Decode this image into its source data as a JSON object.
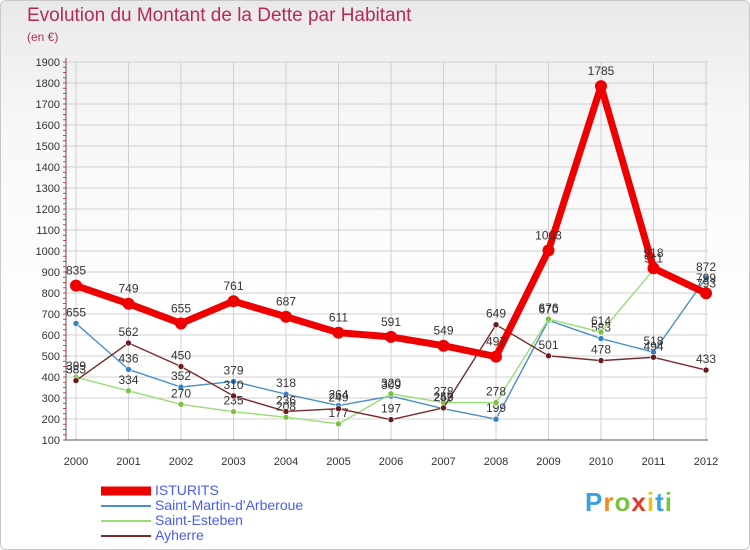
{
  "header": {
    "title": "Evolution du Montant de la Dette par Habitant",
    "unit": "(en €)"
  },
  "brand": {
    "letters": [
      "P",
      "r",
      "o",
      "x",
      "i",
      "t",
      "i"
    ],
    "colors": [
      "#3aa0e0",
      "#f28b1a",
      "#7cc242",
      "#e23a2a",
      "#f2c01a",
      "#3aa0e0",
      "#7cc242"
    ]
  },
  "chart_data": {
    "type": "line",
    "title": "Evolution du Montant de la Dette par Habitant",
    "ylabel": "(en €)",
    "xlabel": "",
    "x": [
      "2000",
      "2001",
      "2002",
      "2003",
      "2004",
      "2005",
      "2006",
      "2007",
      "2008",
      "2009",
      "2010",
      "2011",
      "2012"
    ],
    "ylim": [
      100,
      1900
    ],
    "yticks": [
      100,
      200,
      300,
      400,
      500,
      600,
      700,
      800,
      900,
      1000,
      1100,
      1200,
      1300,
      1400,
      1500,
      1600,
      1700,
      1800,
      1900
    ],
    "grid": true,
    "legend_position": "bottom-left",
    "series": [
      {
        "name": "Saint-Martin-d'Arberoue",
        "color": "#4a90c8",
        "marker": "#3a7fc0",
        "values": [
          655,
          436,
          352,
          379,
          318,
          264,
          309,
          249,
          199,
          670,
          583,
          518,
          872
        ],
        "labels": [
          "655",
          "436",
          "352",
          "379",
          "318",
          "264",
          "309",
          "249",
          "199",
          "670",
          "583",
          "518",
          "872"
        ]
      },
      {
        "name": "Saint-Esteben",
        "color": "#99dd77",
        "marker": "#7cc242",
        "values": [
          399,
          334,
          270,
          235,
          208,
          177,
          320,
          278,
          278,
          676,
          614,
          911,
          793
        ],
        "labels": [
          "399",
          "334",
          "270",
          "235",
          "208",
          "177",
          "320",
          "278",
          "278",
          "676",
          "614",
          "911",
          "793"
        ]
      },
      {
        "name": "Ayherre",
        "color": "#7a2a2a",
        "marker": "#6a1c1c",
        "values": [
          383,
          562,
          450,
          310,
          236,
          249,
          197,
          253,
          649,
          501,
          478,
          494,
          433
        ],
        "labels": [
          "383",
          "562",
          "450",
          "310",
          "236",
          "249",
          "197",
          "253",
          "649",
          "501",
          "478",
          "494",
          "433"
        ]
      },
      {
        "name": "ISTURITS",
        "color": "#ee0000",
        "marker": "#ee0000",
        "values": [
          835,
          749,
          655,
          761,
          687,
          611,
          591,
          549,
          497,
          1003,
          1785,
          918,
          799
        ],
        "labels": [
          "835",
          "749",
          "655",
          "761",
          "687",
          "611",
          "591",
          "549",
          "497",
          "1003",
          "1785",
          "918",
          "799"
        ]
      }
    ]
  }
}
